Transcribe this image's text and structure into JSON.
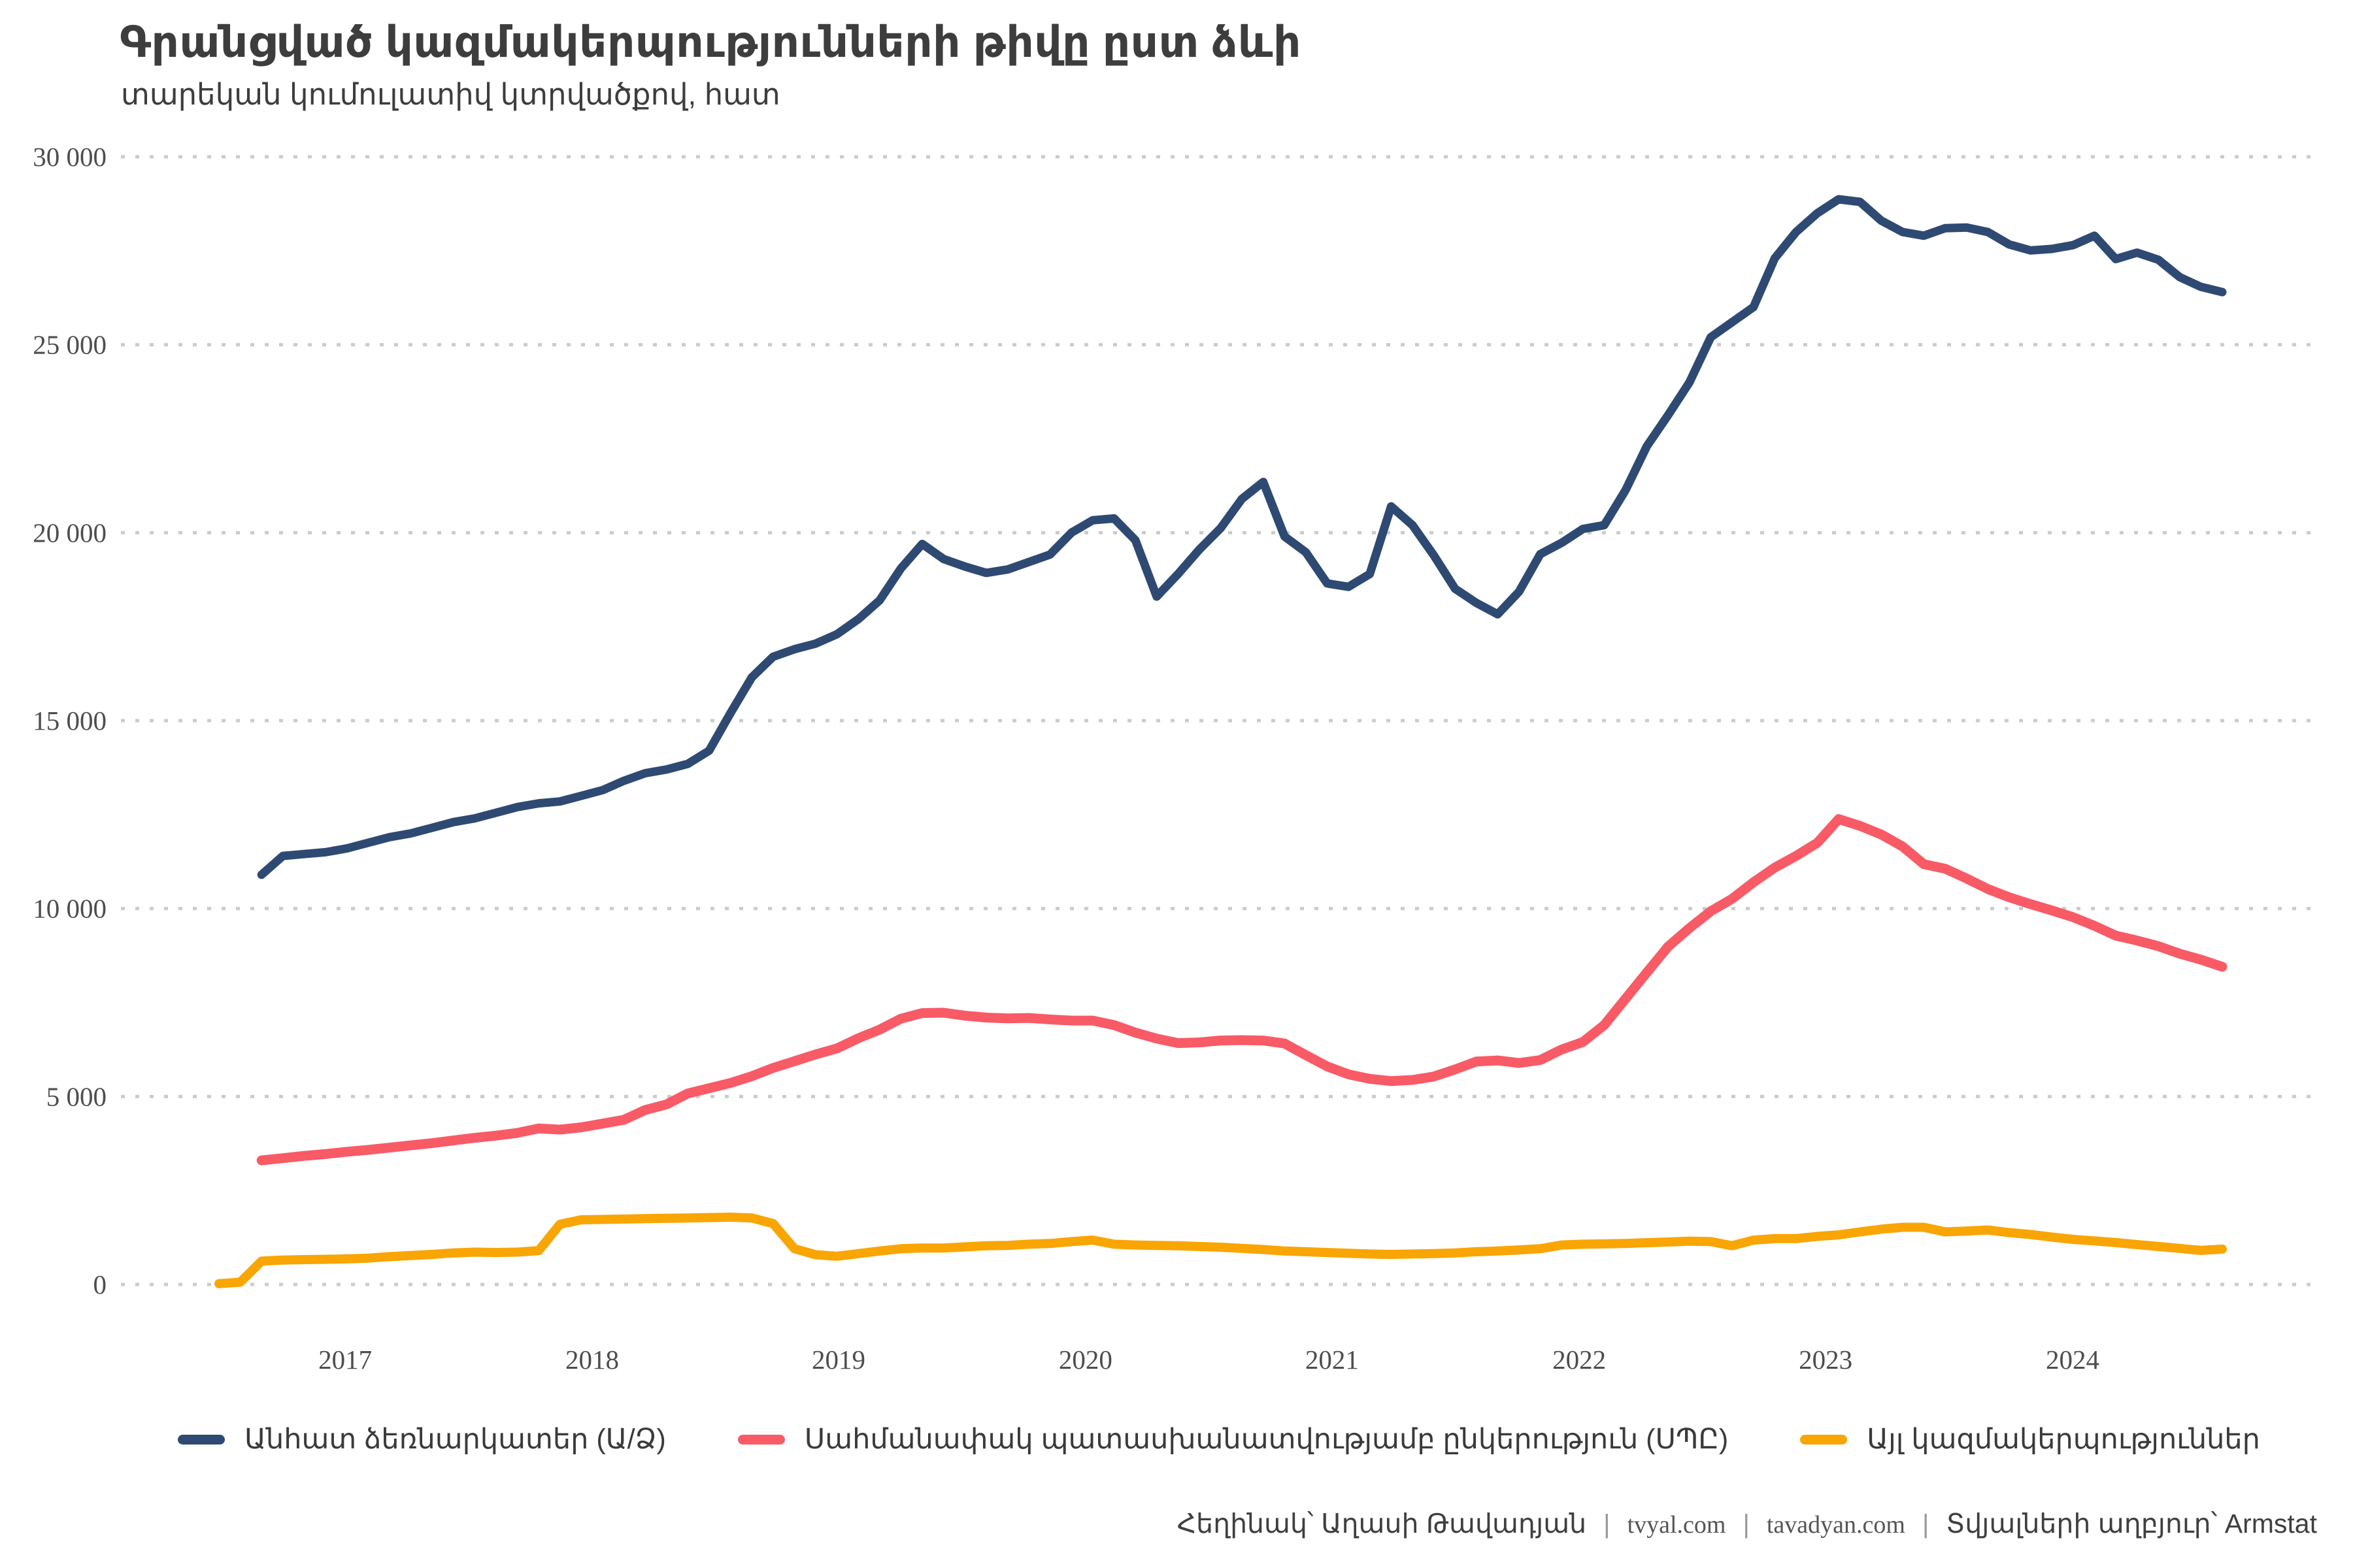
{
  "title": "Գրանցված կազմակերպությունների թիվը ըստ ձևի",
  "subtitle": "տարեկան կումուլատիվ կտրվածքով, հատ",
  "footer": {
    "author": "Հեղինակ՝ Աղասի Թավադյան",
    "site1": "tvyal.com",
    "site2": "tavadyan.com",
    "source": "Տվյալների աղբյուր՝ Armstat",
    "separator": "|"
  },
  "chart_data": {
    "type": "line",
    "title": "Գրանցված կազմակերպությունների թիվը ըստ ձևի",
    "subtitle": "տարեկան կումուլատիվ կտրվածքով, հատ",
    "grid": "dotted-horizontal",
    "legend_position": "bottom",
    "y_axis": {
      "range": [
        0,
        30000
      ],
      "ticks": [
        {
          "label": "0",
          "value": 0
        },
        {
          "label": "5 000",
          "value": 5000
        },
        {
          "label": "10 000",
          "value": 10000
        },
        {
          "label": "15 000",
          "value": 15000
        },
        {
          "label": "20 000",
          "value": 20000
        },
        {
          "label": "25 000",
          "value": 25000
        },
        {
          "label": "30 000",
          "value": 30000
        }
      ]
    },
    "x_axis": {
      "ticks": [
        {
          "label": "2017",
          "f": 0.063
        },
        {
          "label": "2018",
          "f": 0.1863
        },
        {
          "label": "2019",
          "f": 0.3093
        },
        {
          "label": "2020",
          "f": 0.4326
        },
        {
          "label": "2021",
          "f": 0.5556
        },
        {
          "label": "2022",
          "f": 0.679
        },
        {
          "label": "2023",
          "f": 0.802
        },
        {
          "label": "2024",
          "f": 0.9253
        }
      ]
    },
    "series": [
      {
        "name": "Անհատ ձեռնարկատեր (Ա/Ձ)",
        "color": "#2e4a73",
        "stroke_width": 13,
        "values": [
          null,
          null,
          10900,
          11400,
          11450,
          11500,
          11600,
          11750,
          11900,
          12000,
          12150,
          12300,
          12400,
          12550,
          12700,
          12800,
          12850,
          13000,
          13150,
          13400,
          13600,
          13700,
          13850,
          14200,
          15200,
          16150,
          16700,
          16900,
          17050,
          17300,
          17700,
          18200,
          19050,
          19700,
          19300,
          19100,
          18930,
          19020,
          19220,
          19420,
          20000,
          20330,
          20380,
          19800,
          18300,
          18900,
          19550,
          20120,
          20900,
          21350,
          19900,
          19480,
          18650,
          18560,
          18900,
          20700,
          20200,
          19400,
          18510,
          18130,
          17830,
          18430,
          19430,
          19730,
          20100,
          20200,
          21130,
          22300,
          23130,
          24000,
          25200,
          25600,
          26000,
          27300,
          28000,
          28500,
          28870,
          28800,
          28300,
          28000,
          27900,
          28100,
          28120,
          28000,
          27670,
          27510,
          27550,
          27650,
          27900,
          27280,
          27450,
          27260,
          26800,
          26540,
          26400
        ]
      },
      {
        "name": "Սահմանափակ պատասխանատվությամբ ընկերություն (ՍՊԸ)",
        "color": "#f85b66",
        "stroke_width": 15,
        "values": [
          null,
          null,
          3300,
          3360,
          3420,
          3470,
          3530,
          3580,
          3640,
          3700,
          3760,
          3830,
          3900,
          3960,
          4030,
          4150,
          4120,
          4180,
          4280,
          4380,
          4640,
          4790,
          5080,
          5220,
          5360,
          5540,
          5760,
          5940,
          6120,
          6280,
          6550,
          6780,
          7070,
          7220,
          7230,
          7150,
          7100,
          7080,
          7090,
          7050,
          7020,
          7020,
          6900,
          6700,
          6540,
          6420,
          6440,
          6490,
          6500,
          6490,
          6410,
          6100,
          5800,
          5590,
          5470,
          5410,
          5440,
          5530,
          5720,
          5930,
          5960,
          5890,
          5970,
          6250,
          6450,
          6900,
          7600,
          8300,
          8990,
          9480,
          9930,
          10260,
          10700,
          11090,
          11400,
          11750,
          12380,
          12200,
          11970,
          11650,
          11180,
          11060,
          10800,
          10520,
          10300,
          10120,
          9950,
          9770,
          9540,
          9280,
          9150,
          9000,
          8800,
          8640,
          8450
        ]
      },
      {
        "name": "Այլ կազմակերպություններ",
        "color": "#f9a503",
        "stroke_width": 14,
        "values": [
          20,
          60,
          620,
          650,
          660,
          670,
          680,
          700,
          740,
          770,
          800,
          840,
          860,
          850,
          860,
          900,
          1600,
          1720,
          1730,
          1740,
          1750,
          1760,
          1770,
          1780,
          1790,
          1770,
          1620,
          950,
          790,
          750,
          820,
          890,
          950,
          970,
          970,
          1000,
          1030,
          1040,
          1070,
          1090,
          1140,
          1180,
          1070,
          1050,
          1040,
          1030,
          1010,
          990,
          960,
          930,
          890,
          870,
          850,
          830,
          810,
          800,
          810,
          820,
          840,
          870,
          890,
          920,
          950,
          1050,
          1070,
          1080,
          1090,
          1110,
          1130,
          1150,
          1140,
          1030,
          1180,
          1220,
          1220,
          1280,
          1320,
          1400,
          1470,
          1520,
          1520,
          1400,
          1420,
          1450,
          1380,
          1330,
          1260,
          1200,
          1160,
          1115,
          1060,
          1010,
          960,
          905,
          940
        ]
      }
    ]
  }
}
